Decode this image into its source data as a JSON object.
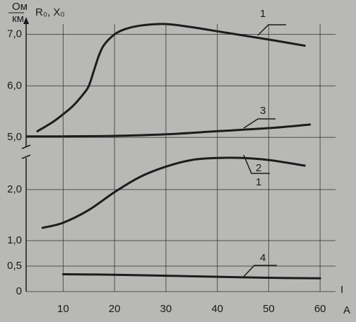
{
  "chart_data": [
    {
      "type": "line",
      "y_label": "R₀, X₀",
      "y_unit_top": "Ом",
      "y_unit_bottom": "км",
      "xlim": [
        2.8,
        63
      ],
      "ylim": [
        4.7,
        7.2
      ],
      "yticks": [
        {
          "value": 5,
          "label": "5,0"
        },
        {
          "value": 6,
          "label": "6,0"
        },
        {
          "value": 7,
          "label": "7,0"
        }
      ],
      "grid": true,
      "series": [
        {
          "name": "1",
          "color": "#1c1c1c",
          "x": [
            5,
            8,
            10,
            12,
            14,
            15,
            16,
            17,
            18,
            20,
            22,
            25,
            30,
            35,
            40,
            45,
            50,
            57
          ],
          "values": [
            5.12,
            5.3,
            5.45,
            5.62,
            5.85,
            6.0,
            6.3,
            6.6,
            6.8,
            7.0,
            7.1,
            7.17,
            7.2,
            7.14,
            7.06,
            6.98,
            6.9,
            6.78
          ]
        },
        {
          "name": "3",
          "color": "#1c1c1c",
          "x": [
            3,
            10,
            20,
            30,
            40,
            50,
            58
          ],
          "values": [
            5.02,
            5.02,
            5.03,
            5.06,
            5.12,
            5.18,
            5.25
          ]
        }
      ]
    },
    {
      "type": "line",
      "x_label": "I",
      "x_unit": "A",
      "xlim": [
        2.8,
        63
      ],
      "ylim": [
        0,
        2.72
      ],
      "xticks": [
        10,
        20,
        30,
        40,
        50,
        60
      ],
      "yticks": [
        0,
        {
          "value": 0.5,
          "label": "0,5"
        },
        {
          "value": 1,
          "label": "1,0"
        },
        {
          "value": 2,
          "label": "2,0"
        }
      ],
      "grid": true,
      "annotations": [
        "1"
      ],
      "series": [
        {
          "name": "2",
          "color": "#1c1c1c",
          "x": [
            6,
            10,
            15,
            20,
            25,
            30,
            35,
            40,
            45,
            50,
            57
          ],
          "values": [
            1.25,
            1.35,
            1.6,
            1.95,
            2.25,
            2.45,
            2.58,
            2.62,
            2.62,
            2.58,
            2.47
          ]
        },
        {
          "name": "4",
          "color": "#1c1c1c",
          "x": [
            10,
            20,
            30,
            40,
            50,
            60
          ],
          "values": [
            0.34,
            0.33,
            0.31,
            0.29,
            0.27,
            0.26
          ]
        }
      ]
    }
  ]
}
